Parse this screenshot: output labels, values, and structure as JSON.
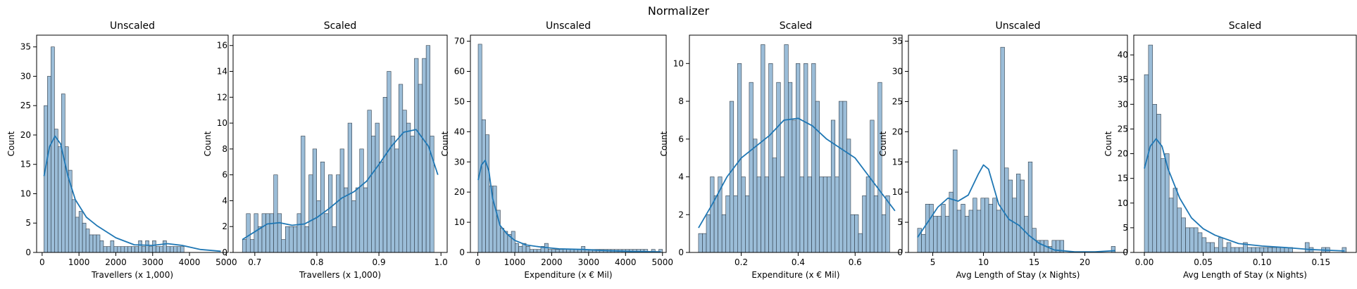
{
  "figure_title": "Normalizer",
  "colors": {
    "bar_fill": "#9bbdd8",
    "bar_edge": "#2f3b47",
    "kde": "#1f77b4"
  },
  "chart_data": [
    {
      "type": "bar",
      "title": "Unscaled",
      "xlabel": "Travellers (x 1,000)",
      "ylabel": "Count",
      "xlim": [
        -150,
        5050
      ],
      "ylim": [
        0,
        37
      ],
      "xticks": [
        0,
        1000,
        2000,
        3000,
        4000,
        5000
      ],
      "yticks": [
        0,
        5,
        10,
        15,
        20,
        25,
        30,
        35
      ],
      "bin_start": 50,
      "bin_width": 95,
      "values": [
        25,
        30,
        35,
        21,
        18,
        27,
        18,
        14,
        9,
        6,
        7,
        5,
        4,
        3,
        3,
        3,
        2,
        1,
        1,
        2,
        1,
        1,
        1,
        1,
        1,
        1,
        1,
        2,
        1,
        2,
        1,
        2,
        1,
        1,
        2,
        1,
        1,
        1,
        1,
        1,
        0,
        0,
        0,
        0,
        0,
        0,
        0,
        0,
        0,
        0
      ],
      "kde": {
        "x": [
          50,
          200,
          350,
          500,
          700,
          900,
          1200,
          1500,
          2000,
          2500,
          3000,
          3400,
          3800,
          4300,
          4850
        ],
        "y": [
          13,
          18,
          19.8,
          18.5,
          13,
          9,
          6,
          4.5,
          2.5,
          1.3,
          1.2,
          1.5,
          1.2,
          0.5,
          0.2
        ]
      }
    },
    {
      "type": "bar",
      "title": "Scaled",
      "xlabel": "Travellers (x 1,000)",
      "ylabel": "Count",
      "xlim": [
        0.665,
        1.01
      ],
      "ylim": [
        0,
        16.8
      ],
      "xticks": [
        0.7,
        0.8,
        0.9,
        1.0
      ],
      "xtick_labels": [
        "0.7",
        "0.8",
        "0.9",
        "1.0"
      ],
      "yticks": [
        0,
        2,
        4,
        6,
        8,
        10,
        12,
        14,
        16
      ],
      "bin_start": 0.68,
      "bin_width": 0.0063,
      "values": [
        1,
        3,
        1,
        3,
        2,
        3,
        3,
        3,
        6,
        3,
        1,
        2,
        2,
        2,
        3,
        9,
        2,
        6,
        8,
        4,
        7,
        3,
        6,
        2,
        6,
        8,
        5,
        10,
        4,
        5,
        8,
        5,
        11,
        9,
        10,
        7,
        12,
        14,
        9,
        8,
        13,
        11,
        10,
        9,
        15,
        13,
        15,
        16,
        9,
        0
      ],
      "kde": {
        "x": [
          0.68,
          0.7,
          0.72,
          0.74,
          0.76,
          0.78,
          0.8,
          0.82,
          0.84,
          0.86,
          0.88,
          0.9,
          0.92,
          0.94,
          0.96,
          0.98,
          0.995
        ],
        "y": [
          1,
          1.6,
          2.2,
          2.3,
          2.1,
          2.2,
          2.7,
          3.4,
          4.2,
          4.7,
          5.5,
          6.8,
          8.2,
          9.3,
          9.5,
          8.2,
          6
        ]
      }
    },
    {
      "type": "bar",
      "title": "Unscaled",
      "xlabel": "Expenditure (x € Mil)",
      "ylabel": "Count",
      "xlim": [
        -200,
        5100
      ],
      "ylim": [
        0,
        72
      ],
      "xticks": [
        0,
        1000,
        2000,
        3000,
        4000,
        5000
      ],
      "yticks": [
        0,
        10,
        20,
        30,
        40,
        50,
        60,
        70
      ],
      "bin_start": 10,
      "bin_width": 99.8,
      "values": [
        69,
        44,
        39,
        22,
        22,
        14,
        8,
        7,
        6,
        7,
        3,
        2,
        3,
        2,
        1,
        1,
        1,
        2,
        3,
        1,
        1,
        1,
        1,
        1,
        1,
        1,
        1,
        1,
        2,
        1,
        1,
        1,
        1,
        1,
        1,
        1,
        1,
        1,
        1,
        1,
        1,
        1,
        1,
        1,
        1,
        1,
        0,
        1,
        0,
        1
      ],
      "kde": {
        "x": [
          10,
          100,
          200,
          300,
          400,
          600,
          800,
          1000,
          1300,
          1700,
          2200,
          2800,
          3500,
          4200,
          4950
        ],
        "y": [
          24,
          29,
          30.5,
          27,
          18,
          9,
          6,
          4,
          2.5,
          1.8,
          1.2,
          1,
          0.6,
          0.3,
          0.2
        ]
      }
    },
    {
      "type": "bar",
      "title": "Scaled",
      "xlabel": "Expenditure (x € Mil)",
      "ylabel": "Count",
      "xlim": [
        0.018,
        0.765
      ],
      "ylim": [
        0,
        11.5
      ],
      "xticks": [
        0.2,
        0.4,
        0.6
      ],
      "yticks": [
        0,
        2,
        4,
        6,
        8,
        10
      ],
      "bin_start": 0.05,
      "bin_width": 0.0137,
      "values": [
        1,
        1,
        2,
        4,
        3,
        4,
        2,
        3,
        8,
        3,
        10,
        4,
        3,
        9,
        6,
        4,
        11,
        4,
        10,
        5,
        9,
        4,
        11,
        9,
        7,
        10,
        4,
        10,
        4,
        10,
        8,
        4,
        4,
        4,
        7,
        4,
        8,
        8,
        6,
        2,
        2,
        1,
        3,
        4,
        7,
        3,
        9,
        2,
        3,
        0
      ],
      "kde": {
        "x": [
          0.05,
          0.1,
          0.15,
          0.2,
          0.25,
          0.3,
          0.35,
          0.4,
          0.45,
          0.5,
          0.55,
          0.6,
          0.65,
          0.7,
          0.74
        ],
        "y": [
          1.3,
          2.6,
          4,
          5,
          5.6,
          6.2,
          7,
          7.1,
          6.7,
          6,
          5.5,
          5,
          4,
          3,
          2.2
        ]
      }
    },
    {
      "type": "bar",
      "title": "Unscaled",
      "xlabel": "Avg Length of Stay (x Nights)",
      "ylabel": "Count",
      "xlim": [
        2.6,
        24.2
      ],
      "ylim": [
        0,
        36
      ],
      "xticks": [
        5,
        10,
        15,
        20
      ],
      "yticks": [
        0,
        5,
        10,
        15,
        20,
        25,
        30,
        35
      ],
      "bin_start": 3.5,
      "bin_width": 0.39,
      "values": [
        4,
        3,
        8,
        8,
        6,
        6,
        8,
        6,
        10,
        17,
        7,
        8,
        6,
        7,
        9,
        7,
        9,
        9,
        8,
        9,
        7,
        34,
        14,
        12,
        9,
        13,
        12,
        6,
        15,
        4,
        2,
        2,
        2,
        1,
        2,
        2,
        2,
        0,
        0,
        0,
        0,
        0,
        0,
        0,
        0,
        0,
        0,
        0,
        0,
        1
      ],
      "kde": {
        "x": [
          3.5,
          4.5,
          5.5,
          6.5,
          7.5,
          8.5,
          9.5,
          10,
          10.5,
          11.5,
          12.5,
          13.5,
          14.5,
          15.5,
          17,
          19,
          21,
          23
        ],
        "y": [
          2.5,
          5,
          7.5,
          9,
          8.5,
          9.5,
          13,
          14.5,
          13.8,
          8,
          5.5,
          4.5,
          2.8,
          1.5,
          0.4,
          0.1,
          0.1,
          0.3
        ]
      }
    },
    {
      "type": "bar",
      "title": "Scaled",
      "xlabel": "Avg Length of Stay (x Nights)",
      "ylabel": "Count",
      "xlim": [
        -0.009,
        0.18
      ],
      "ylim": [
        0,
        44
      ],
      "xticks": [
        0.0,
        0.05,
        0.1,
        0.15
      ],
      "xtick_labels": [
        "0.00",
        "0.05",
        "0.10",
        "0.15"
      ],
      "yticks": [
        0,
        5,
        10,
        15,
        20,
        25,
        30,
        35,
        40
      ],
      "bin_start": 0.0,
      "bin_width": 0.0035,
      "values": [
        36,
        42,
        30,
        28,
        19,
        20,
        11,
        13,
        9,
        7,
        5,
        5,
        5,
        4,
        3,
        2,
        2,
        1,
        3,
        1,
        2,
        1,
        1,
        1,
        2,
        1,
        1,
        1,
        1,
        1,
        1,
        1,
        1,
        1,
        1,
        1,
        0,
        0,
        0,
        2,
        1,
        0,
        0,
        1,
        1,
        0,
        0,
        0,
        1,
        0
      ],
      "kde": {
        "x": [
          0.0,
          0.005,
          0.01,
          0.015,
          0.02,
          0.03,
          0.04,
          0.05,
          0.06,
          0.08,
          0.1,
          0.12,
          0.14,
          0.17
        ],
        "y": [
          17,
          21.5,
          23,
          21.5,
          17,
          11,
          7,
          4.8,
          3.5,
          1.8,
          1.3,
          1,
          0.6,
          0.3
        ]
      }
    }
  ]
}
